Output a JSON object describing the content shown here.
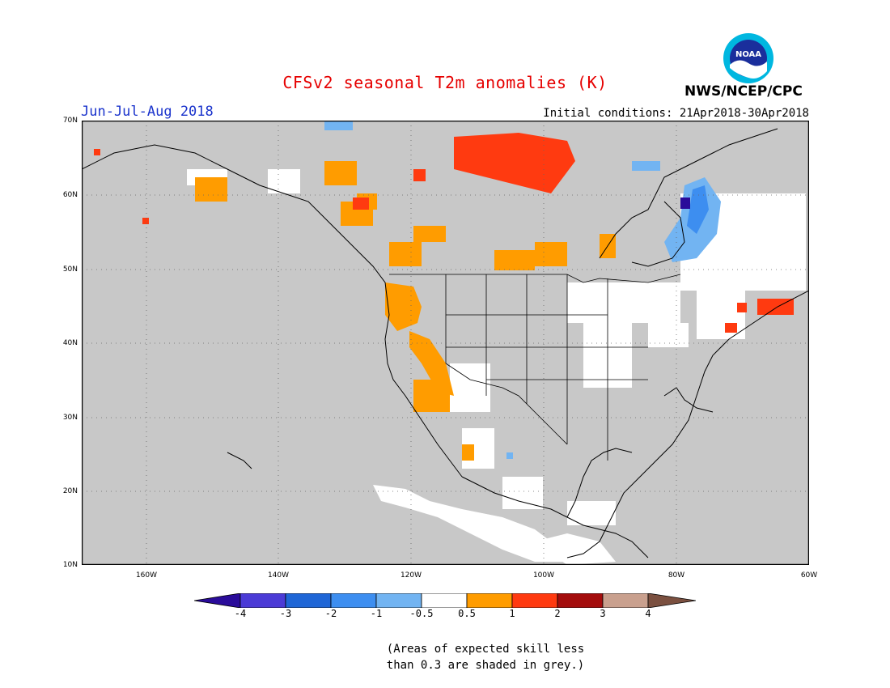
{
  "header": {
    "title": "CFSv2 seasonal T2m anomalies (K)",
    "period": "Jun-Jul-Aug 2018",
    "initial_conditions": "Initial conditions: 21Apr2018-30Apr2018",
    "agency": "NWS/NCEP/CPC",
    "logo_text": "NOAA"
  },
  "axes": {
    "lat_labels": [
      "70N",
      "60N",
      "50N",
      "40N",
      "30N",
      "20N",
      "10N"
    ],
    "lon_labels": [
      "160W",
      "140W",
      "120W",
      "100W",
      "80W",
      "60W"
    ]
  },
  "legend": {
    "labels": [
      "-4",
      "-3",
      "-2",
      "-1",
      "-0.5",
      "0.5",
      "1",
      "2",
      "3",
      "4"
    ],
    "colors": {
      "below_-4": "#2a0c9a",
      "-4_-3": "#4b3bd6",
      "-3_-2": "#1f66d6",
      "-2_-1": "#3d8ef0",
      "-1_-0.5": "#72b4f2",
      "-0.5_0.5": "#ffffff",
      "0.5_1": "#ff9c00",
      "1_2": "#ff3a10",
      "2_3": "#a40d0d",
      "3_4": "#c9a08e",
      "above_4": "#7b5040"
    }
  },
  "map_colors": {
    "low_skill_grey": "#c8c8c8",
    "coastline": "#000000"
  },
  "footnote": {
    "line1": "(Areas of expected skill less",
    "line2": "than 0.3 are shaded in grey.)"
  }
}
